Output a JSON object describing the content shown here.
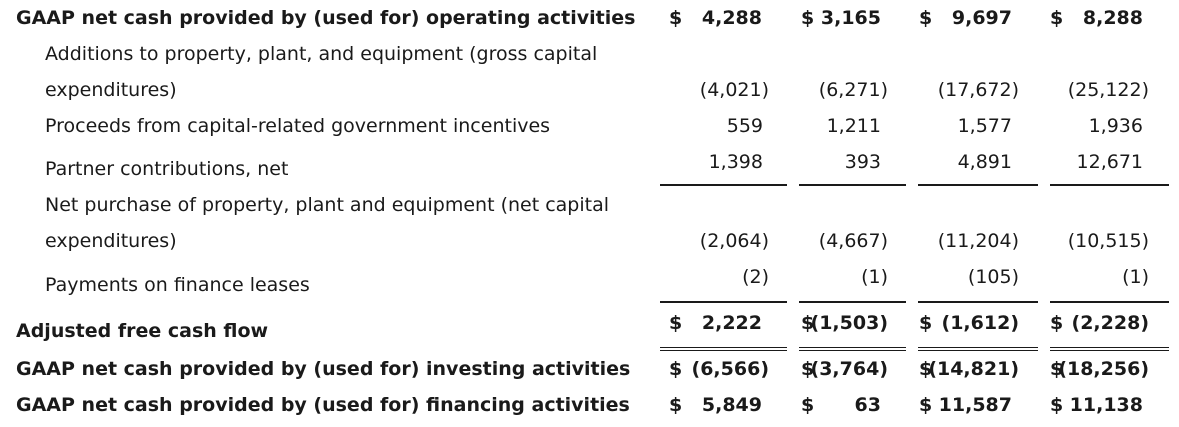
{
  "rows": [
    {
      "label": "GAAP net cash provided by (used for) operating activities",
      "bold": true,
      "values": [
        {
          "dollar": "$",
          "num": "4,288"
        },
        {
          "dollar": "$",
          "num": "3,165"
        },
        {
          "dollar": "$",
          "num": "9,697"
        },
        {
          "dollar": "$",
          "num": "8,288"
        }
      ]
    },
    {
      "label_line1": "Additions to property, plant, and equipment (gross capital",
      "label_line2": "expenditures)",
      "values": [
        {
          "num": "(4,021)"
        },
        {
          "num": "(6,271)"
        },
        {
          "num": "(17,672)"
        },
        {
          "num": "(25,122)"
        }
      ]
    },
    {
      "label": "Proceeds from capital-related government incentives",
      "values": [
        {
          "num": "559"
        },
        {
          "num": "1,211"
        },
        {
          "num": "1,577"
        },
        {
          "num": "1,936"
        }
      ]
    },
    {
      "label": "Partner contributions, net",
      "values": [
        {
          "num": "1,398"
        },
        {
          "num": "393"
        },
        {
          "num": "4,891"
        },
        {
          "num": "12,671"
        }
      ]
    },
    {
      "label_line1": "Net purchase of property, plant and equipment (net capital",
      "label_line2": "expenditures)",
      "values": [
        {
          "num": "(2,064)"
        },
        {
          "num": "(4,667)"
        },
        {
          "num": "(11,204)"
        },
        {
          "num": "(10,515)"
        }
      ]
    },
    {
      "label": "Payments on finance leases",
      "values": [
        {
          "num": "(2)"
        },
        {
          "num": "(1)"
        },
        {
          "num": "(105)"
        },
        {
          "num": "(1)"
        }
      ]
    },
    {
      "label": "Adjusted free cash flow",
      "bold": true,
      "values": [
        {
          "dollar": "$",
          "num": "2,222"
        },
        {
          "dollar": "$",
          "num": "(1,503)"
        },
        {
          "dollar": "$",
          "num": "(1,612)"
        },
        {
          "dollar": "$",
          "num": "(2,228)"
        }
      ]
    },
    {
      "label": "GAAP net cash provided by (used for) investing activities",
      "bold": true,
      "values": [
        {
          "dollar": "$",
          "num": "(6,566)"
        },
        {
          "dollar": "$",
          "num": "(3,764)"
        },
        {
          "dollar": "$",
          "num": "(14,821)"
        },
        {
          "dollar": "$",
          "num": "(18,256)"
        }
      ]
    },
    {
      "label": "GAAP net cash provided by (used for) financing activities",
      "bold": true,
      "values": [
        {
          "dollar": "$",
          "num": "5,849"
        },
        {
          "dollar": "$",
          "num": "63"
        },
        {
          "dollar": "$",
          "num": "11,587"
        },
        {
          "dollar": "$",
          "num": "11,138"
        }
      ]
    }
  ]
}
